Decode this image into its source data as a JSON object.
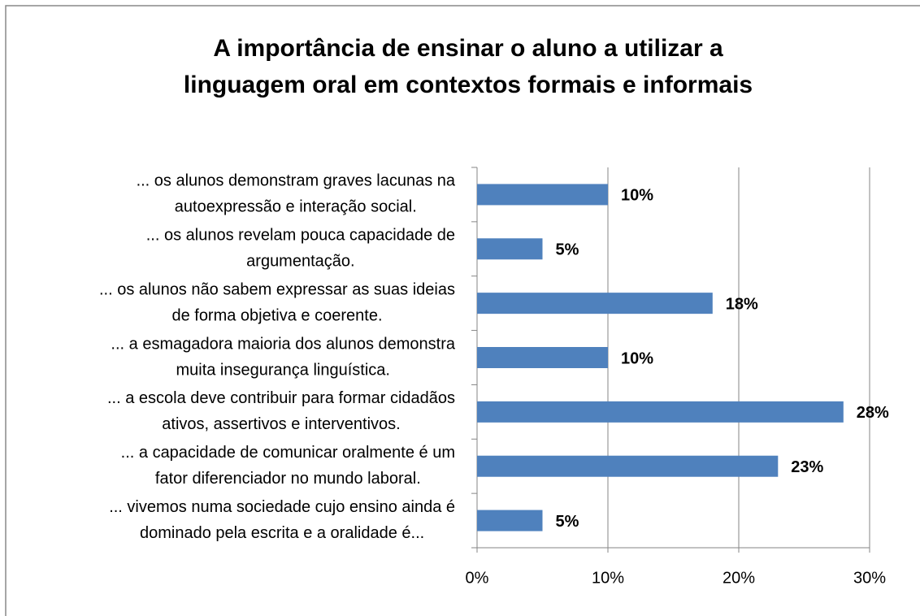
{
  "chart_data": {
    "type": "barh",
    "title": [
      "A importância de ensinar o aluno a utilizar a",
      "linguagem oral em contextos formais e informais"
    ],
    "categories": [
      [
        "... os alunos demonstram graves lacunas na",
        "autoexpressão e interação social."
      ],
      [
        "... os alunos revelam pouca capacidade de",
        "argumentação."
      ],
      [
        "... os alunos não sabem expressar as suas ideias",
        "de forma objetiva e coerente."
      ],
      [
        "... a esmagadora maioria dos alunos demonstra",
        "muita insegurança linguística."
      ],
      [
        "... a escola deve contribuir para formar cidadãos",
        "ativos, assertivos e interventivos."
      ],
      [
        "... a capacidade de comunicar oralmente é um",
        "fator diferenciador no mundo laboral."
      ],
      [
        "... vivemos numa sociedade cujo ensino ainda é",
        "dominado pela escrita e a oralidade é..."
      ]
    ],
    "values": [
      10,
      5,
      18,
      10,
      28,
      23,
      5
    ],
    "value_labels": [
      "10%",
      "5%",
      "18%",
      "10%",
      "28%",
      "23%",
      "5%"
    ],
    "color": "#4f81bd",
    "xlim": [
      0,
      30
    ],
    "xticks": [
      {
        "value": 0,
        "label": "0%"
      },
      {
        "value": 10,
        "label": "10%"
      },
      {
        "value": 20,
        "label": "20%"
      },
      {
        "value": 30,
        "label": "30%"
      }
    ],
    "grid": true
  }
}
